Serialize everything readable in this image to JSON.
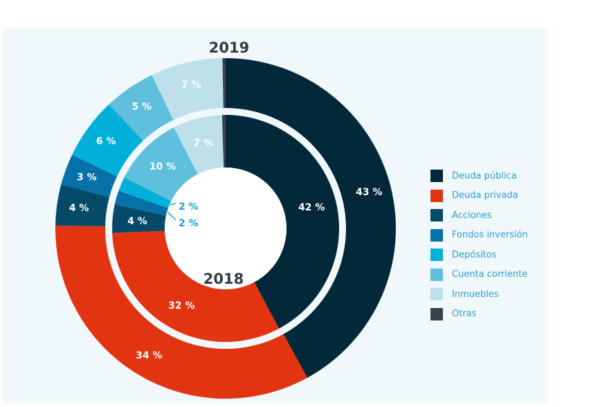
{
  "chart_data": {
    "type": "pie",
    "subtype": "nested-donut",
    "categories": [
      "Deuda pública",
      "Deuda privada",
      "Acciones",
      "Fondos inversión",
      "Depósitos",
      "Cuenta corriente",
      "Inmuebles",
      "Otras"
    ],
    "colors": [
      "#02283a",
      "#e33411",
      "#064a6a",
      "#0670a8",
      "#00b0d8",
      "#5fc0de",
      "#bde0ea",
      "#3a434b"
    ],
    "series": [
      {
        "name": "2019",
        "ring": "outer",
        "values": [
          43,
          34,
          4,
          3,
          6,
          5,
          7,
          0.3
        ],
        "labels": [
          "43 %",
          "34 %",
          "4 %",
          "3 %",
          "6 %",
          "5 %",
          "7 %",
          ""
        ]
      },
      {
        "name": "2018",
        "ring": "inner",
        "values": [
          42,
          32,
          4,
          2,
          2,
          10,
          7,
          0.5
        ],
        "labels": [
          "42 %",
          "32 %",
          "4 %",
          "2 %",
          "2 %",
          "10 %",
          "7 %",
          ""
        ]
      }
    ],
    "legend_position": "right",
    "title": ""
  },
  "legend": {
    "items": [
      {
        "label": "Deuda pública",
        "color": "#02283a"
      },
      {
        "label": "Deuda privada",
        "color": "#e33411"
      },
      {
        "label": "Acciones",
        "color": "#064a6a"
      },
      {
        "label": "Fondos inversión",
        "color": "#0670a8"
      },
      {
        "label": "Depósitos",
        "color": "#00b0d8"
      },
      {
        "label": "Cuenta corriente",
        "color": "#5fc0de"
      },
      {
        "label": "Inmuebles",
        "color": "#bde0ea"
      },
      {
        "label": "Otras",
        "color": "#3a434b"
      }
    ]
  },
  "years": {
    "outer": "2019",
    "inner": "2018"
  }
}
